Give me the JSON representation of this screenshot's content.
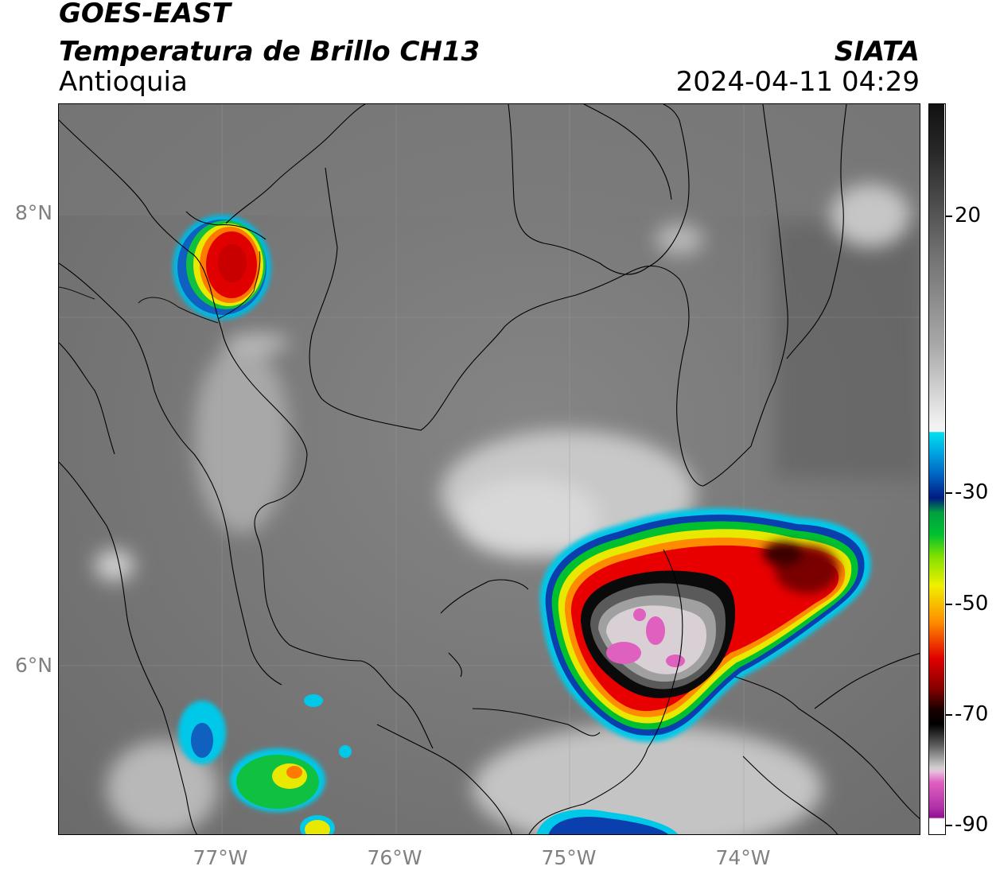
{
  "header": {
    "title_line1": "GOES-EAST",
    "title_line2": "Temperatura de Brillo CH13",
    "region": "Antioquia",
    "brand": "SIATA",
    "timestamp": "2024-04-11 04:29"
  },
  "map": {
    "lat_labels": [
      "8°N",
      "6°N"
    ],
    "lon_labels": [
      "77°W",
      "76°W",
      "75°W",
      "74°W"
    ],
    "gridlines": true,
    "label_color": "#808080"
  },
  "colorbar": {
    "tick_labels": [
      "20",
      "-30",
      "-50",
      "-70",
      "-90"
    ],
    "colors": {
      "gray_warm": "#6e6e6e",
      "white": "#f2f2f2",
      "cyan": "#00c8e8",
      "blue": "#0030a0",
      "green": "#00c030",
      "yellow": "#f0f000",
      "orange": "#ff8c00",
      "red": "#e00000",
      "dark_red": "#5a0000",
      "black": "#000000",
      "light_gray": "#d0d0d0",
      "pink": "#e060c0",
      "purple": "#901090"
    }
  }
}
